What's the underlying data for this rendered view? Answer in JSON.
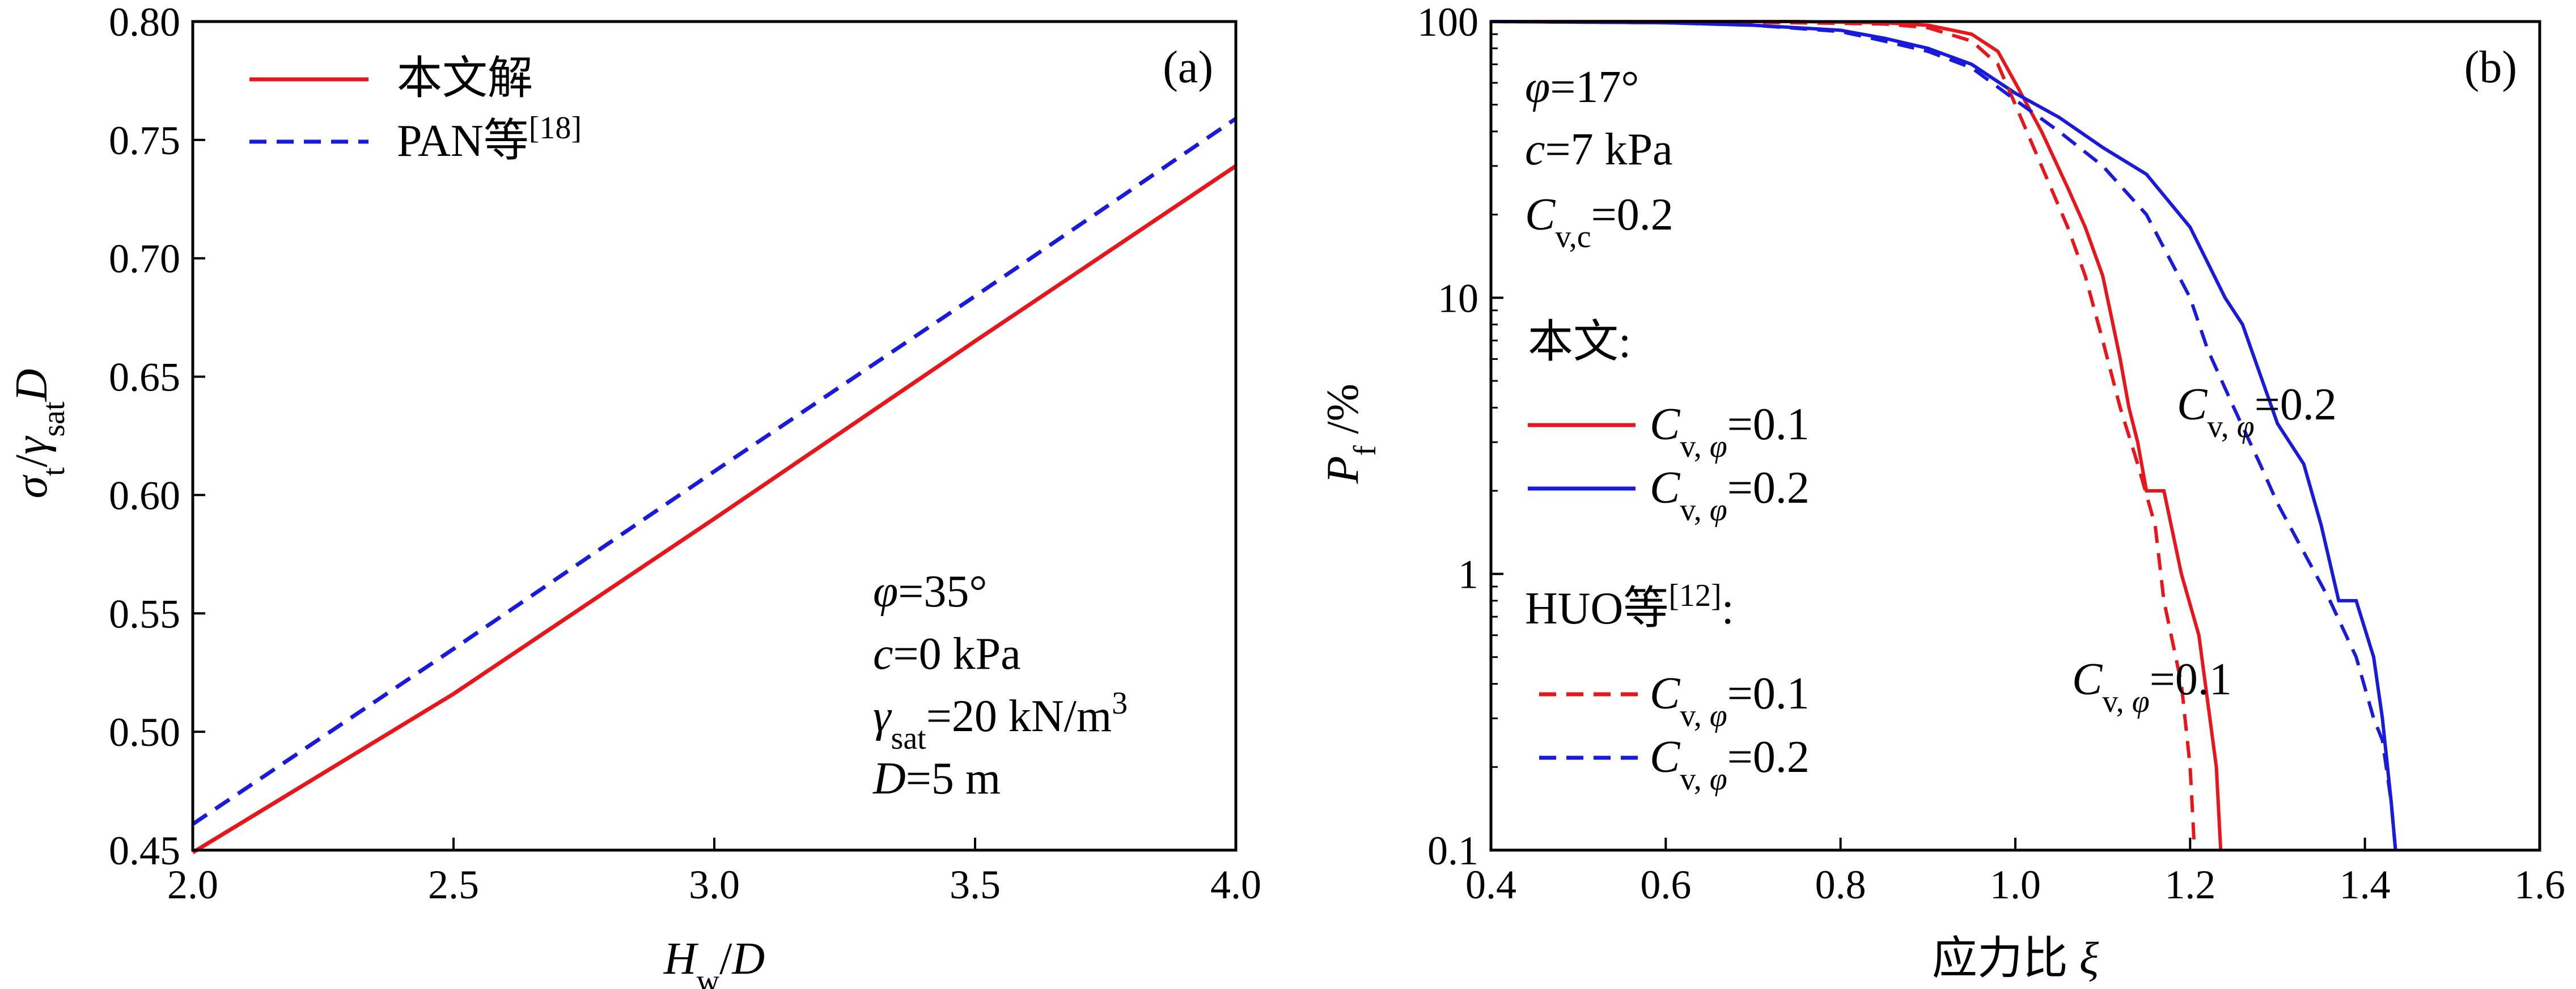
{
  "chart_data": [
    {
      "type": "line",
      "panel_label": "(a)",
      "xlabel": "H_w/D",
      "ylabel": "σ_t/γ_sat D",
      "xlim": [
        2.0,
        4.0
      ],
      "ylim": [
        0.45,
        0.8
      ],
      "x_ticks": [
        "2.0",
        "2.5",
        "3.0",
        "3.5",
        "4.0"
      ],
      "y_ticks": [
        "0.45",
        "0.50",
        "0.55",
        "0.60",
        "0.65",
        "0.70",
        "0.75",
        "0.80"
      ],
      "legend_position": "top-left",
      "series": [
        {
          "name": "本文解",
          "color": "#e8161b",
          "style": "solid",
          "x": [
            2.0,
            2.5,
            3.0,
            3.5,
            4.0
          ],
          "y": [
            0.449,
            0.516,
            0.59,
            0.665,
            0.739
          ]
        },
        {
          "name": "PAN等[18]",
          "color": "#1a1adc",
          "style": "dashed",
          "x": [
            2.0,
            2.5,
            3.0,
            3.5,
            4.0
          ],
          "y": [
            0.461,
            0.535,
            0.61,
            0.684,
            0.759
          ]
        }
      ],
      "annotations": [
        "φ=35°",
        "c=0 kPa",
        "γsat=20 kN/m3",
        "D=5 m"
      ]
    },
    {
      "type": "line",
      "panel_label": "(b)",
      "xlabel": "应力比 ξ",
      "ylabel": "P_f /%",
      "xlim": [
        0.4,
        1.6
      ],
      "ylim": [
        0.1,
        100
      ],
      "yscale": "log",
      "x_ticks": [
        "0.4",
        "0.6",
        "0.8",
        "1.0",
        "1.2",
        "1.4",
        "1.6"
      ],
      "y_ticks": [
        "0.1",
        "1",
        "10",
        "100"
      ],
      "annotations": [
        "φ=17°",
        "c=7 kPa",
        "Cv,c=0.2",
        "Cv,φ=0.2",
        "Cv,φ=0.1"
      ],
      "legend_position": "left",
      "legend_groups": [
        {
          "title": "本文:",
          "entries": [
            "Cv,φ=0.1",
            "Cv,φ=0.2"
          ]
        },
        {
          "title": "HUO等[12]:",
          "entries": [
            "Cv,φ=0.1",
            "Cv,φ=0.2"
          ]
        }
      ],
      "series": [
        {
          "name": "本文 Cv,φ=0.1",
          "color": "#e8161b",
          "style": "solid",
          "x": [
            0.4,
            0.6,
            0.75,
            0.85,
            0.9,
            0.95,
            0.98,
            1.0,
            1.03,
            1.06,
            1.08,
            1.1,
            1.11,
            1.12,
            1.13,
            1.14,
            1.15,
            1.17,
            1.19,
            1.21,
            1.23,
            1.235
          ],
          "y": [
            100,
            100,
            100,
            99,
            97,
            90,
            78,
            60,
            40,
            25,
            18,
            12,
            8.5,
            6,
            4,
            3,
            2,
            2,
            1,
            0.6,
            0.2,
            0.1
          ]
        },
        {
          "name": "本文 Cv,φ=0.2",
          "color": "#1a1adc",
          "style": "solid",
          "x": [
            0.4,
            0.6,
            0.7,
            0.8,
            0.85,
            0.9,
            0.95,
            1.0,
            1.05,
            1.1,
            1.15,
            1.2,
            1.24,
            1.26,
            1.27,
            1.3,
            1.33,
            1.35,
            1.37,
            1.39,
            1.41,
            1.42,
            1.43,
            1.435
          ],
          "y": [
            100,
            99,
            97,
            93,
            87,
            80,
            70,
            55,
            45,
            35,
            28,
            18,
            10,
            8,
            6.5,
            3.5,
            2.5,
            1.5,
            0.8,
            0.8,
            0.5,
            0.3,
            0.15,
            0.1
          ]
        },
        {
          "name": "HUO等[12] Cv,φ=0.1",
          "color": "#e8161b",
          "style": "dashed",
          "x": [
            0.4,
            0.6,
            0.75,
            0.85,
            0.9,
            0.95,
            0.98,
            1.0,
            1.03,
            1.06,
            1.08,
            1.1,
            1.12,
            1.14,
            1.16,
            1.17,
            1.19,
            1.2,
            1.205
          ],
          "y": [
            100,
            100,
            99,
            98,
            95,
            85,
            70,
            50,
            30,
            18,
            12,
            7,
            4,
            2.5,
            1.5,
            0.8,
            0.4,
            0.2,
            0.1
          ]
        },
        {
          "name": "HUO等[12] Cv,φ=0.2",
          "color": "#1a1adc",
          "style": "dashed",
          "x": [
            0.4,
            0.6,
            0.7,
            0.8,
            0.85,
            0.9,
            0.95,
            1.0,
            1.05,
            1.1,
            1.15,
            1.2,
            1.22,
            1.25,
            1.28,
            1.3,
            1.33,
            1.36,
            1.39,
            1.41,
            1.42,
            1.43,
            1.435
          ],
          "y": [
            100,
            99,
            97,
            92,
            85,
            78,
            68,
            52,
            40,
            30,
            20,
            10,
            6.5,
            4,
            2.5,
            1.8,
            1.2,
            0.8,
            0.5,
            0.3,
            0.25,
            0.15,
            0.1
          ]
        }
      ]
    }
  ],
  "colors": {
    "red": "#e8161b",
    "blue": "#1a1adc",
    "axis": "#000000"
  }
}
